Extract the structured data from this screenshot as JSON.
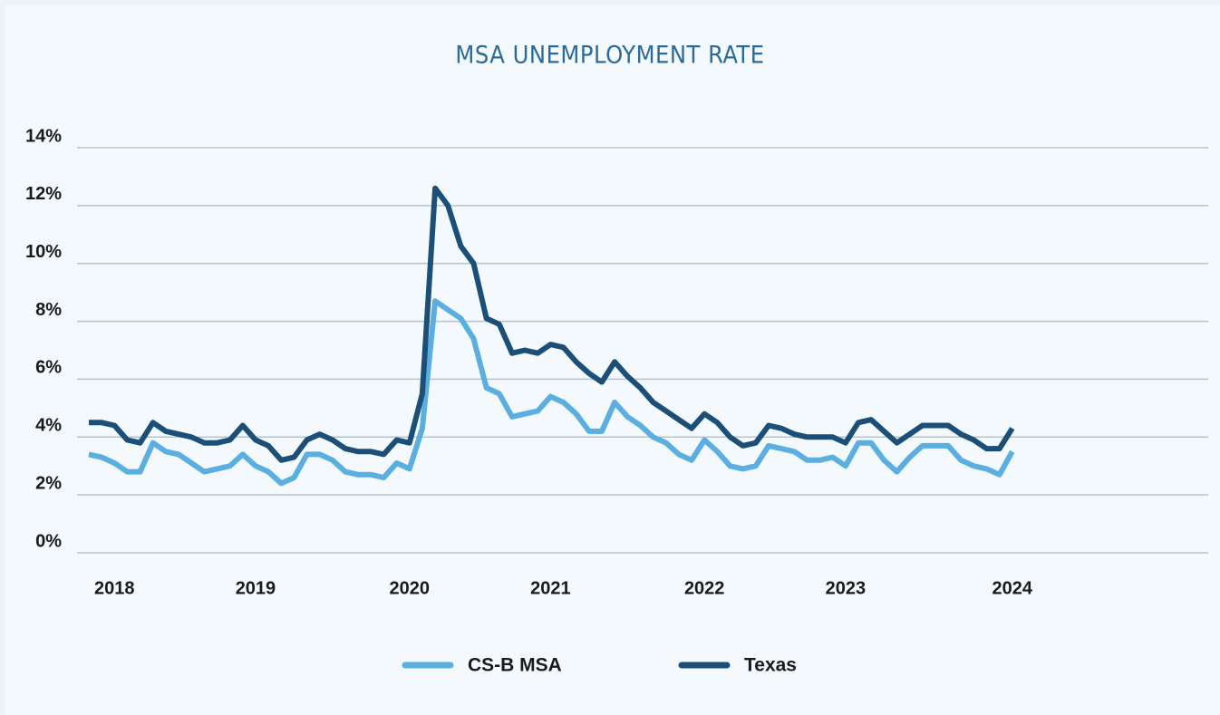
{
  "chart_data": {
    "type": "line",
    "title": "MSA UNEMPLOYMENT RATE",
    "categories": [
      null,
      null,
      "2018",
      null,
      null,
      null,
      null,
      null,
      null,
      null,
      null,
      null,
      null,
      "2019",
      null,
      null,
      null,
      null,
      null,
      null,
      null,
      null,
      null,
      null,
      null,
      "2020",
      null,
      null,
      null,
      null,
      null,
      null,
      null,
      null,
      null,
      null,
      "2021",
      null,
      null,
      null,
      null,
      null,
      null,
      null,
      null,
      null,
      null,
      null,
      "2022",
      null,
      null,
      null,
      null,
      null,
      null,
      null,
      null,
      null,
      null,
      "2023",
      null,
      null,
      null,
      null,
      null,
      null,
      null,
      null,
      null,
      null,
      null,
      null,
      "2024"
    ],
    "series": [
      {
        "name": "CS-B MSA",
        "color": "#5aaee0",
        "values": [
          3.4,
          3.3,
          3.1,
          2.8,
          2.8,
          3.8,
          3.5,
          3.4,
          3.1,
          2.8,
          2.9,
          3.0,
          3.4,
          3.0,
          2.8,
          2.4,
          2.6,
          3.4,
          3.4,
          3.2,
          2.8,
          2.7,
          2.7,
          2.6,
          3.1,
          2.9,
          4.3,
          8.7,
          8.4,
          8.1,
          7.4,
          5.7,
          5.5,
          4.7,
          4.8,
          4.9,
          5.4,
          5.2,
          4.8,
          4.2,
          4.2,
          5.2,
          4.7,
          4.4,
          4.0,
          3.8,
          3.4,
          3.2,
          3.9,
          3.5,
          3.0,
          2.9,
          3.0,
          3.7,
          3.6,
          3.5,
          3.2,
          3.2,
          3.3,
          3.0,
          3.8,
          3.8,
          3.2,
          2.8,
          3.3,
          3.7,
          3.7,
          3.7,
          3.2,
          3.0,
          2.9,
          2.7,
          3.5
        ]
      },
      {
        "name": "Texas",
        "color": "#1b4f78",
        "values": [
          4.5,
          4.5,
          4.4,
          3.9,
          3.8,
          4.5,
          4.2,
          4.1,
          4.0,
          3.8,
          3.8,
          3.9,
          4.4,
          3.9,
          3.7,
          3.2,
          3.3,
          3.9,
          4.1,
          3.9,
          3.6,
          3.5,
          3.5,
          3.4,
          3.9,
          3.8,
          5.5,
          12.6,
          12.0,
          10.6,
          10.0,
          8.1,
          7.9,
          6.9,
          7.0,
          6.9,
          7.2,
          7.1,
          6.6,
          6.2,
          5.9,
          6.6,
          6.1,
          5.7,
          5.2,
          4.9,
          4.6,
          4.3,
          4.8,
          4.5,
          4.0,
          3.7,
          3.8,
          4.4,
          4.3,
          4.1,
          4.0,
          4.0,
          4.0,
          3.8,
          4.5,
          4.6,
          4.2,
          3.8,
          4.1,
          4.4,
          4.4,
          4.4,
          4.1,
          3.9,
          3.6,
          3.6,
          4.3
        ]
      }
    ],
    "ylim": [
      0,
      14
    ],
    "yticks": [
      {
        "value": 0,
        "label": "0%"
      },
      {
        "value": 2,
        "label": "2%"
      },
      {
        "value": 4,
        "label": "4%"
      },
      {
        "value": 6,
        "label": "6%"
      },
      {
        "value": 8,
        "label": "8%"
      },
      {
        "value": 10,
        "label": "10%"
      },
      {
        "value": 12,
        "label": "12%"
      },
      {
        "value": 14,
        "label": "14%"
      }
    ],
    "grid": true,
    "legend": "bottom"
  }
}
